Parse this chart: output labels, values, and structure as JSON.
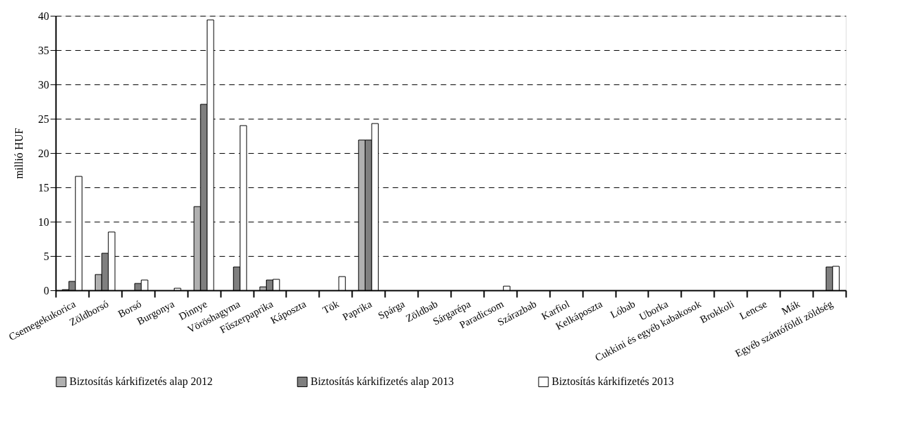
{
  "chart_data": {
    "type": "bar",
    "ylabel": "millió HUF",
    "categories": [
      "Csemegekukorica",
      "Zöldborsó",
      "Borsó",
      "Burgonya",
      "Dinnye",
      "Vöröshagyma",
      "Fűszerpaprika",
      "Káposzta",
      "Tök",
      "Paprika",
      "Spárga",
      "Zöldbab",
      "Sárgarépa",
      "Paradicsom",
      "Szárazbab",
      "Karfiol",
      "Kelkáposzta",
      "Lóbab",
      "Uborka",
      "Cukkini és egyéb kabakosok",
      "Brokkoli",
      "Lencse",
      "Mák",
      "Egyéb szántóföldi zöldség"
    ],
    "series": [
      {
        "name": "Biztosítás kárkifizetés alap 2012",
        "color": "#b0b0b0",
        "values": [
          0.1,
          2.3,
          null,
          null,
          12.2,
          null,
          0.5,
          null,
          null,
          21.9,
          null,
          null,
          null,
          null,
          null,
          null,
          null,
          null,
          null,
          null,
          null,
          null,
          null,
          null
        ]
      },
      {
        "name": "Biztosítás kárkifizetés alap 2013",
        "color": "#7f7f7f",
        "values": [
          1.3,
          5.4,
          1.0,
          null,
          27.1,
          3.4,
          1.5,
          null,
          null,
          21.9,
          null,
          null,
          null,
          null,
          null,
          null,
          null,
          null,
          null,
          null,
          null,
          null,
          null,
          3.4
        ]
      },
      {
        "name": "Biztosítás kárkifizetés 2013",
        "color": "#ffffff",
        "values": [
          16.6,
          8.5,
          1.5,
          0.3,
          39.4,
          24.0,
          1.6,
          null,
          2.0,
          24.3,
          null,
          null,
          null,
          0.6,
          null,
          null,
          null,
          null,
          null,
          null,
          null,
          null,
          null,
          3.5
        ]
      }
    ],
    "ylim": [
      0,
      40
    ],
    "yticks": [
      0,
      5,
      10,
      15,
      20,
      25,
      30,
      35,
      40
    ],
    "grid": "y",
    "legend": "bottom"
  }
}
